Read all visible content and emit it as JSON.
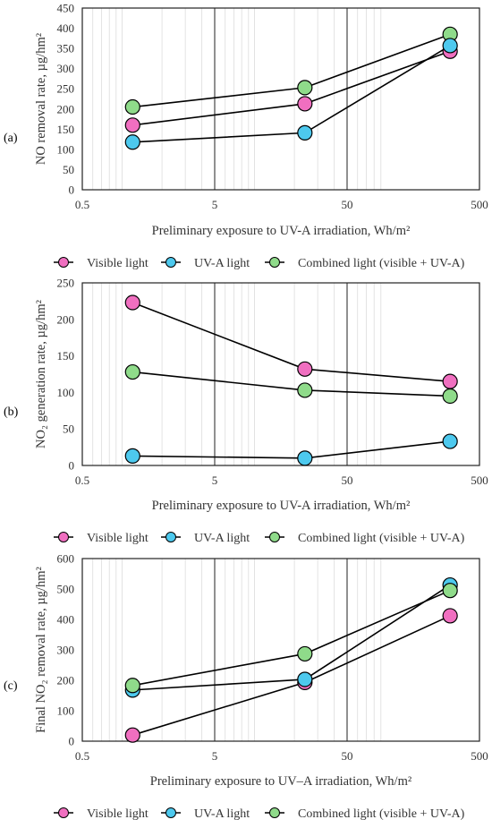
{
  "colors": {
    "visible": "#f06fc0",
    "uva": "#4dc9ee",
    "combined": "#8fdb8a",
    "line": "#000000",
    "grid": "#dcdcdc"
  },
  "legend": [
    {
      "key": "visible",
      "label": "Visible light"
    },
    {
      "key": "uva",
      "label": "UV-A light"
    },
    {
      "key": "combined",
      "label": "Combined light (visible + UV-A)"
    }
  ],
  "chart_data": [
    {
      "id": "a",
      "panel_label": "(a)",
      "type": "line",
      "x_scale": "log",
      "xlim": [
        0.5,
        500
      ],
      "x_ticks": [
        "0.5",
        "5",
        "50",
        "500"
      ],
      "xlabel": "Preliminary exposure to UV-A irradiation, Wh/m²",
      "ylabel": "NO removal rate, µg/hm²",
      "ylim": [
        0,
        450
      ],
      "y_step": 50,
      "x": [
        1.2,
        24,
        300
      ],
      "series": [
        {
          "key": "combined",
          "name": "Combined light (visible + UV-A)",
          "values": [
            205,
            253,
            385
          ]
        },
        {
          "key": "visible",
          "name": "Visible light",
          "values": [
            160,
            213,
            343
          ]
        },
        {
          "key": "uva",
          "name": "UV-A light",
          "values": [
            118,
            141,
            357
          ]
        }
      ]
    },
    {
      "id": "b",
      "panel_label": "(b)",
      "type": "line",
      "x_scale": "log",
      "xlim": [
        0.5,
        500
      ],
      "x_ticks": [
        "0.5",
        "5",
        "50",
        "500"
      ],
      "xlabel": "Preliminary exposure to UV-A irradiation, Wh/m²",
      "ylabel": "NO₂ generation rate, µg/hm²",
      "ylim": [
        0,
        250
      ],
      "y_step": 50,
      "x": [
        1.2,
        24,
        300
      ],
      "series": [
        {
          "key": "visible",
          "name": "Visible light",
          "values": [
            223,
            132,
            115
          ]
        },
        {
          "key": "combined",
          "name": "Combined light (visible + UV-A)",
          "values": [
            128,
            103,
            95
          ]
        },
        {
          "key": "uva",
          "name": "UV-A light",
          "values": [
            13,
            10,
            33
          ]
        }
      ]
    },
    {
      "id": "c",
      "panel_label": "(c)",
      "type": "line",
      "x_scale": "log",
      "xlim": [
        0.5,
        500
      ],
      "x_ticks": [
        "0.5",
        "5",
        "50",
        "500"
      ],
      "xlabel": "Preliminary exposure to UV–A irradiation, Wh/m²",
      "ylabel": "Final NO₂ removal rate, µg/hm²",
      "ylim": [
        0,
        600
      ],
      "y_step": 100,
      "x": [
        1.2,
        24,
        300
      ],
      "series": [
        {
          "key": "visible",
          "name": "Visible light",
          "values": [
            20,
            193,
            412
          ]
        },
        {
          "key": "uva",
          "name": "UV-A light",
          "values": [
            168,
            203,
            513
          ]
        },
        {
          "key": "combined",
          "name": "Combined light (visible + UV-A)",
          "values": [
            183,
            287,
            495
          ]
        }
      ]
    }
  ]
}
